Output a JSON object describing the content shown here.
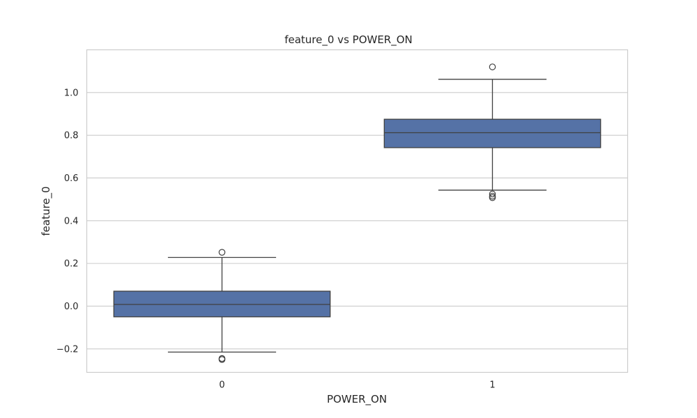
{
  "chart_data": {
    "type": "box",
    "title": "feature_0 vs POWER_ON",
    "xlabel": "POWER_ON",
    "ylabel": "feature_0",
    "categories": [
      "0",
      "1"
    ],
    "ylim": [
      -0.31,
      1.2
    ],
    "yticks": [
      -0.2,
      0.0,
      0.2,
      0.4,
      0.6,
      0.8,
      1.0
    ],
    "ytick_labels": [
      "−0.2",
      "0.0",
      "0.2",
      "0.4",
      "0.6",
      "0.8",
      "1.0"
    ],
    "grid": true,
    "box_color": "#5572a6",
    "boxes": [
      {
        "category": "0",
        "whisker_low": -0.215,
        "q1": -0.05,
        "median": 0.008,
        "q3": 0.07,
        "whisker_high": 0.228,
        "outliers": [
          0.252,
          -0.245,
          -0.25
        ]
      },
      {
        "category": "1",
        "whisker_low": 0.543,
        "q1": 0.742,
        "median": 0.812,
        "q3": 0.875,
        "whisker_high": 1.062,
        "outliers": [
          1.12,
          0.525,
          0.515,
          0.508
        ]
      }
    ]
  }
}
